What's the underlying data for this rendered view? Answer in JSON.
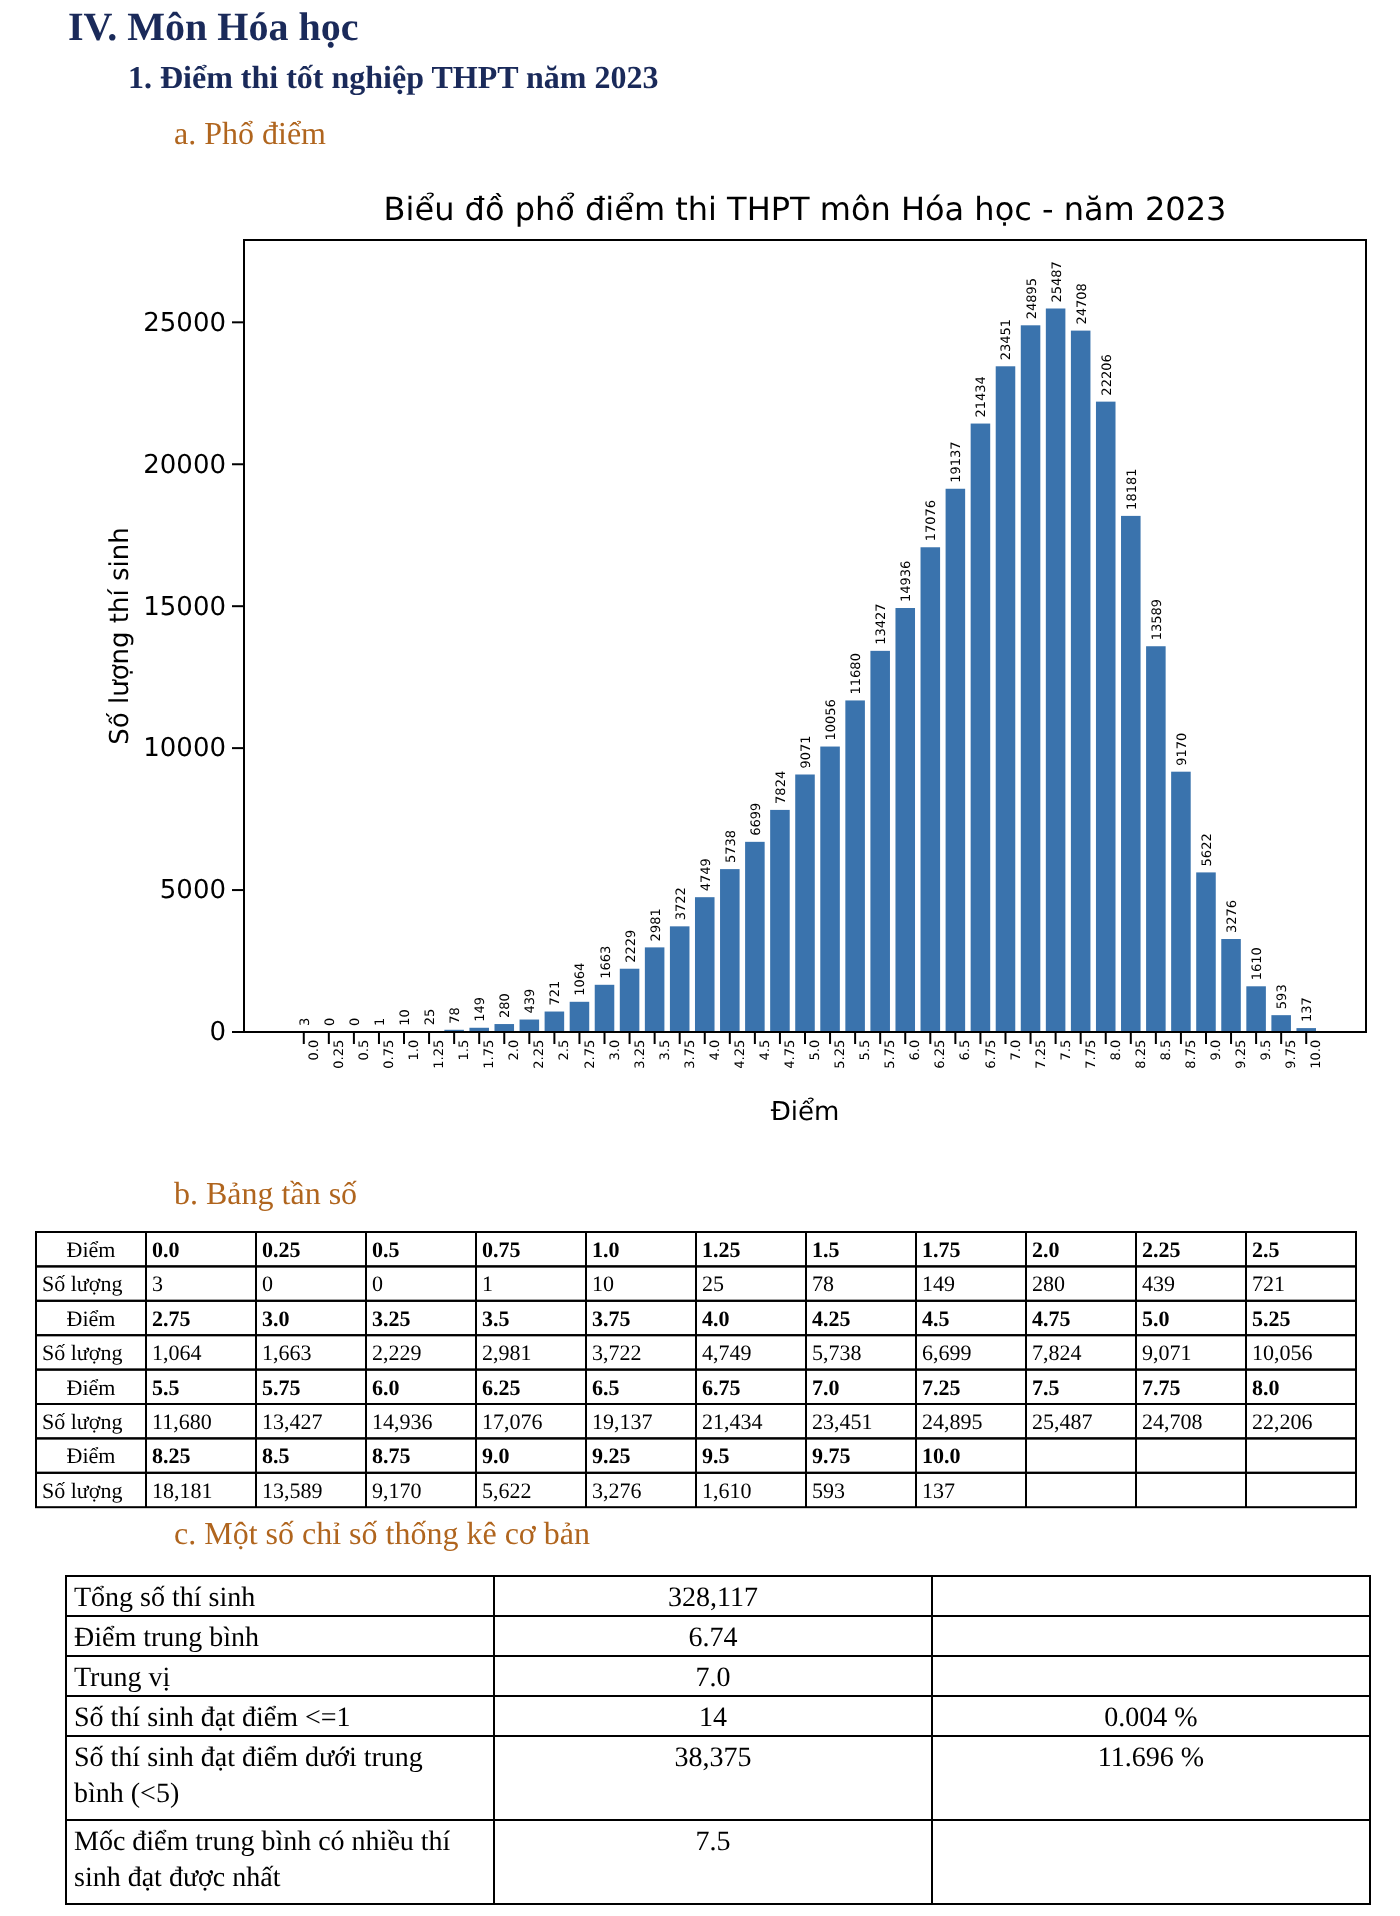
{
  "chart_data": {
    "type": "bar",
    "title": "Biểu đồ phổ điểm thi THPT môn Hóa học - năm 2023",
    "xlabel": "Điểm",
    "ylabel": "Số lượng thí sinh",
    "categories": [
      "0.0",
      "0.25",
      "0.5",
      "0.75",
      "1.0",
      "1.25",
      "1.5",
      "1.75",
      "2.0",
      "2.25",
      "2.5",
      "2.75",
      "3.0",
      "3.25",
      "3.5",
      "3.75",
      "4.0",
      "4.25",
      "4.5",
      "4.75",
      "5.0",
      "5.25",
      "5.5",
      "5.75",
      "6.0",
      "6.25",
      "6.5",
      "6.75",
      "7.0",
      "7.25",
      "7.5",
      "7.75",
      "8.0",
      "8.25",
      "8.5",
      "8.75",
      "9.0",
      "9.25",
      "9.5",
      "9.75",
      "10.0"
    ],
    "values": [
      3,
      0,
      0,
      1,
      10,
      25,
      78,
      149,
      280,
      439,
      721,
      1064,
      1663,
      2229,
      2981,
      3722,
      4749,
      5738,
      6699,
      7824,
      9071,
      10056,
      11680,
      13427,
      14936,
      17076,
      19137,
      21434,
      23451,
      24895,
      25487,
      24708,
      22206,
      18181,
      13589,
      9170,
      5622,
      3276,
      1610,
      593,
      137
    ],
    "color": "#3a73ad",
    "ylim": [
      0,
      27900
    ],
    "yticks": [
      0,
      5000,
      10000,
      15000,
      20000,
      25000
    ],
    "data_labels": true,
    "annotations": [
      "IV.   Môn Hóa học",
      "1.  Điểm thi tốt nghiệp THPT năm 2023",
      "a.  Phổ điểm",
      "b.  Bảng tần số",
      "Điểm",
      "Số lượng",
      "c.  Một số chỉ số thống kê cơ bản",
      "Tổng số thí sinh",
      "328,117",
      "Điểm trung bình",
      "6.74",
      "Trung vị",
      "7.0",
      "Số thí sinh đạt điểm <=1",
      "14",
      "0.004 %",
      "Số thí sinh đạt điểm dưới trung bình (<5)",
      "38,375",
      "11.696 %",
      "Mốc điểm trung bình có nhiều thí sinh đạt được nhất",
      "7.5",
      "3",
      "0",
      "0",
      "1",
      "10",
      "25",
      "78",
      "149",
      "280",
      "439",
      "721",
      "1,064",
      "1,663",
      "2,229",
      "2,981",
      "3,722",
      "4,749",
      "5,738",
      "6,699",
      "7,824",
      "9,071",
      "10,056",
      "11,680",
      "13,427",
      "14,936",
      "17,076",
      "19,137",
      "21,434",
      "23,451",
      "24,895",
      "25,487",
      "24,708",
      "22,206",
      "18,181",
      "13,589",
      "9,170",
      "5,622",
      "3,276",
      "1,610",
      "593",
      "137"
    ]
  }
}
